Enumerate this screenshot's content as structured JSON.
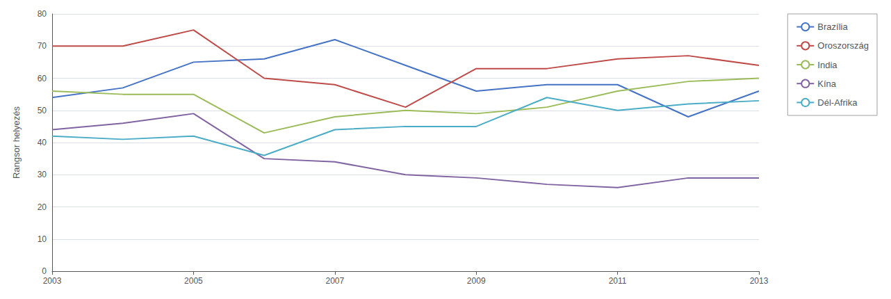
{
  "chart_data": {
    "type": "line",
    "x": [
      2003,
      2004,
      2005,
      2006,
      2007,
      2008,
      2009,
      2010,
      2011,
      2012,
      2013
    ],
    "series": [
      {
        "name": "Brazília",
        "color": "#4472C4",
        "values": [
          54,
          57,
          65,
          66,
          72,
          64,
          56,
          58,
          58,
          48,
          56
        ]
      },
      {
        "name": "Oroszország",
        "color": "#BE4B48",
        "values": [
          70,
          70,
          75,
          60,
          58,
          51,
          63,
          63,
          66,
          67,
          64
        ]
      },
      {
        "name": "India",
        "color": "#9BBB59",
        "values": [
          56,
          55,
          55,
          43,
          48,
          50,
          49,
          51,
          56,
          59,
          60
        ]
      },
      {
        "name": "Kína",
        "color": "#8064A2",
        "values": [
          44,
          46,
          49,
          35,
          34,
          30,
          29,
          27,
          26,
          29,
          29
        ]
      },
      {
        "name": "Dél-Afrika",
        "color": "#4BACC6",
        "values": [
          42,
          41,
          42,
          36,
          44,
          45,
          45,
          54,
          50,
          52,
          53
        ]
      }
    ],
    "ylabel": "Rangsor helyezés",
    "xlim": [
      2003,
      2013
    ],
    "xticks": [
      2003,
      2005,
      2007,
      2009,
      2011,
      2013
    ],
    "ylim": [
      0,
      80
    ],
    "yticks": [
      0,
      10,
      20,
      30,
      40,
      50,
      60,
      70,
      80
    ],
    "grid": true,
    "legend": "right"
  }
}
